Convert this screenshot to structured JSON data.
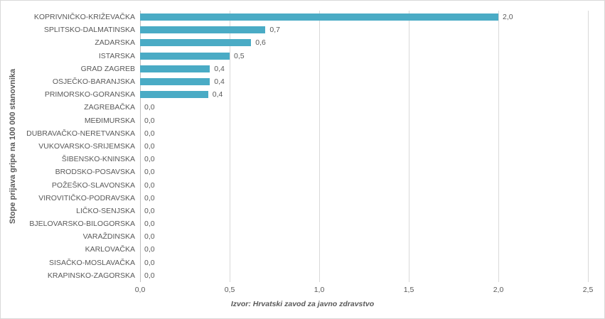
{
  "chart_data": {
    "type": "bar",
    "orientation": "horizontal",
    "title": "",
    "ylabel": "Stope prijava gripe na 100 000 stanovnika",
    "xlabel": "",
    "caption": "Izvor: Hrvatski zavod za javno zdravstvo",
    "xlim": [
      0,
      2.5
    ],
    "xticks": [
      "0,0",
      "0,5",
      "1,0",
      "1,5",
      "2,0",
      "2,5"
    ],
    "xtick_values": [
      0,
      0.5,
      1.0,
      1.5,
      2.0,
      2.5
    ],
    "grid": true,
    "legend": "none",
    "categories": [
      "KOPRIVNIČKO-KRIŽEVAČKA",
      "SPLITSKO-DALMATINSKA",
      "ZADARSKA",
      "ISTARSKA",
      "GRAD ZAGREB",
      "OSJEČKO-BARANJSKA",
      "PRIMORSKO-GORANSKA",
      "ZAGREBAČKA",
      "MEĐIMURSKA",
      "DUBRAVAČKO-NERETVANSKA",
      "VUKOVARSKO-SRIJEMSKA",
      "ŠIBENSKO-KNINSKA",
      "BRODSKO-POSAVSKA",
      "POŽEŠKO-SLAVONSKA",
      "VIROVITIČKO-PODRAVSKA",
      "LIČKO-SENJSKA",
      "BJELOVARSKO-BILOGORSKA",
      "VARAŽDINSKA",
      "KARLOVAČKA",
      "SISAČKO-MOSLAVAČKA",
      "KRAPINSKO-ZAGORSKA"
    ],
    "values": [
      2.0,
      0.7,
      0.62,
      0.5,
      0.39,
      0.39,
      0.38,
      0,
      0,
      0,
      0,
      0,
      0,
      0,
      0,
      0,
      0,
      0,
      0,
      0,
      0
    ],
    "value_labels": [
      "2,0",
      "0,7",
      "0,6",
      "0,5",
      "0,4",
      "0,4",
      "0,4",
      "0,0",
      "0,0",
      "0,0",
      "0,0",
      "0,0",
      "0,0",
      "0,0",
      "0,0",
      "0,0",
      "0,0",
      "0,0",
      "0,0",
      "0,0",
      "0,0"
    ],
    "colors": {
      "bar": "#4aabc5",
      "grid": "#d9d9d9",
      "axis": "#bfbfbf",
      "text": "#595959",
      "border": "#d9d9d9"
    }
  }
}
